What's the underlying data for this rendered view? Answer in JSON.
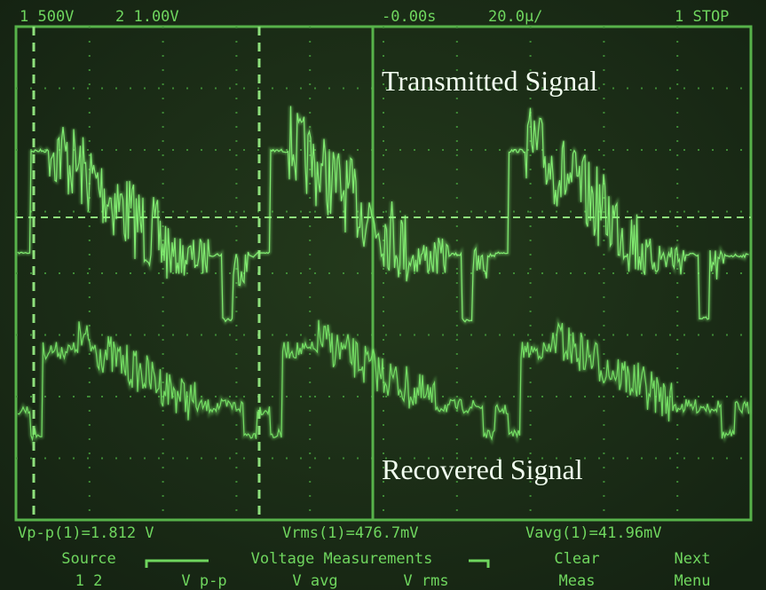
{
  "status_bar": {
    "channel1": "1 500V",
    "channel2": "2 1.00V",
    "time_offset": "-0.00s",
    "time_scale": "20.0µ/",
    "trigger": "1 STOP"
  },
  "annotations": {
    "transmitted": "Transmitted Signal",
    "recovered": "Recovered Signal"
  },
  "measurements": [
    "Vp-p(1)=1.812 V",
    "Vrms(1)=476.7mV",
    "Vavg(1)=41.96mV"
  ],
  "menu": {
    "title": "Voltage Measurements",
    "items": [
      [
        "Source",
        "1 2"
      ],
      [
        "V p-p"
      ],
      [
        "V avg"
      ],
      [
        "V rms"
      ],
      [
        "Clear",
        "Meas"
      ],
      [
        "Next",
        "Menu"
      ]
    ]
  }
}
